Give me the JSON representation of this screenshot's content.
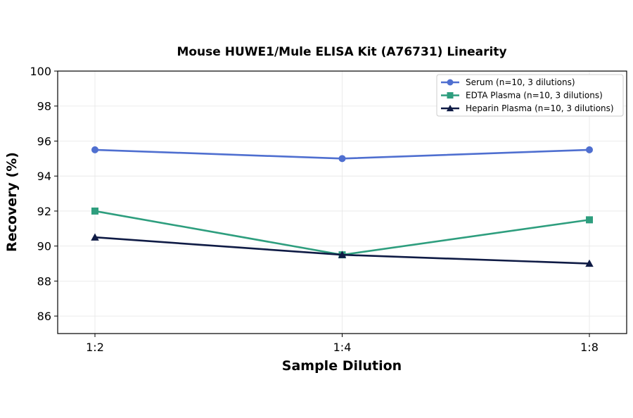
{
  "chart_data": {
    "type": "line",
    "title": "Mouse HUWE1/Mule ELISA Kit (A76731) Linearity",
    "xlabel": "Sample Dilution",
    "ylabel": "Recovery (%)",
    "categories": [
      "1:2",
      "1:4",
      "1:8"
    ],
    "ylim": [
      85,
      100
    ],
    "yticks": [
      86,
      88,
      90,
      92,
      94,
      96,
      98,
      100
    ],
    "grid": true,
    "legend_position": "top-right",
    "series": [
      {
        "name": "Serum (n=10, 3 dilutions)",
        "values": [
          95.5,
          95.0,
          95.5
        ],
        "color": "#4f6fd0",
        "marker": "circle"
      },
      {
        "name": "EDTA Plasma (n=10, 3 dilutions)",
        "values": [
          92.0,
          89.5,
          91.5
        ],
        "color": "#2e9e7e",
        "marker": "square"
      },
      {
        "name": "Heparin Plasma (n=10, 3 dilutions)",
        "values": [
          90.5,
          89.5,
          89.0
        ],
        "color": "#0f1b45",
        "marker": "triangle"
      }
    ]
  }
}
